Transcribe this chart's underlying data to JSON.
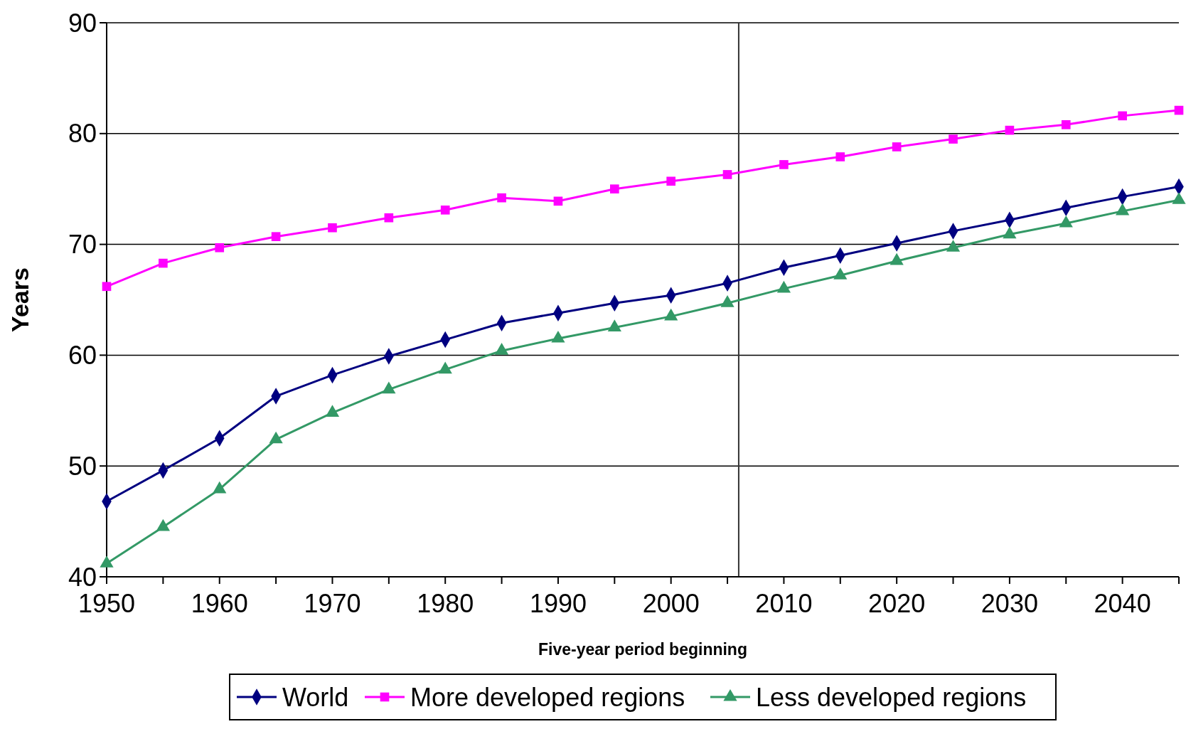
{
  "chart_data": {
    "type": "line",
    "xlabel": "Five-year period beginning",
    "ylabel": "Years",
    "x": [
      1950,
      1955,
      1960,
      1965,
      1970,
      1975,
      1980,
      1985,
      1990,
      1995,
      2000,
      2005,
      2010,
      2015,
      2020,
      2025,
      2030,
      2035,
      2040,
      2045
    ],
    "series": [
      {
        "name": "World",
        "color": "#000080",
        "marker": "diamond",
        "values": [
          46.8,
          49.6,
          52.5,
          56.3,
          58.2,
          59.9,
          61.4,
          62.9,
          63.8,
          64.7,
          65.4,
          66.5,
          67.9,
          69.0,
          70.1,
          71.2,
          72.2,
          73.3,
          74.3,
          75.2
        ]
      },
      {
        "name": "More developed regions",
        "color": "#ff00ff",
        "marker": "square",
        "values": [
          66.2,
          68.3,
          69.7,
          70.7,
          71.5,
          72.4,
          73.1,
          74.2,
          73.9,
          75.0,
          75.7,
          76.3,
          77.2,
          77.9,
          78.8,
          79.5,
          80.3,
          80.8,
          81.6,
          82.1
        ]
      },
      {
        "name": "Less developed regions",
        "color": "#339966",
        "marker": "triangle",
        "values": [
          41.2,
          44.5,
          47.9,
          52.4,
          54.8,
          56.9,
          58.7,
          60.4,
          61.5,
          62.5,
          63.5,
          64.7,
          66.0,
          67.2,
          68.5,
          69.7,
          70.9,
          71.9,
          73.0,
          74.0
        ]
      }
    ],
    "xlim": [
      1950,
      2045
    ],
    "xticks": [
      1950,
      {
        "value": 1955,
        "label": null
      },
      1960,
      {
        "value": 1965,
        "label": null
      },
      1970,
      {
        "value": 1975,
        "label": null
      },
      1980,
      {
        "value": 1985,
        "label": null
      },
      1990,
      {
        "value": 1995,
        "label": null
      },
      2000,
      {
        "value": 2005,
        "label": null
      },
      2010,
      {
        "value": 2015,
        "label": null
      },
      2020,
      {
        "value": 2025,
        "label": null
      },
      2030,
      {
        "value": 2035,
        "label": null
      },
      2040,
      {
        "value": 2045,
        "label": null
      }
    ],
    "ylim": [
      40,
      90
    ],
    "yticks": [
      40,
      50,
      60,
      70,
      80,
      90
    ],
    "grid": "y",
    "ref_lines": [
      {
        "axis": "x",
        "value": 2006,
        "color": "#333333"
      }
    ],
    "legend": "bottom",
    "line_style": "solid"
  }
}
